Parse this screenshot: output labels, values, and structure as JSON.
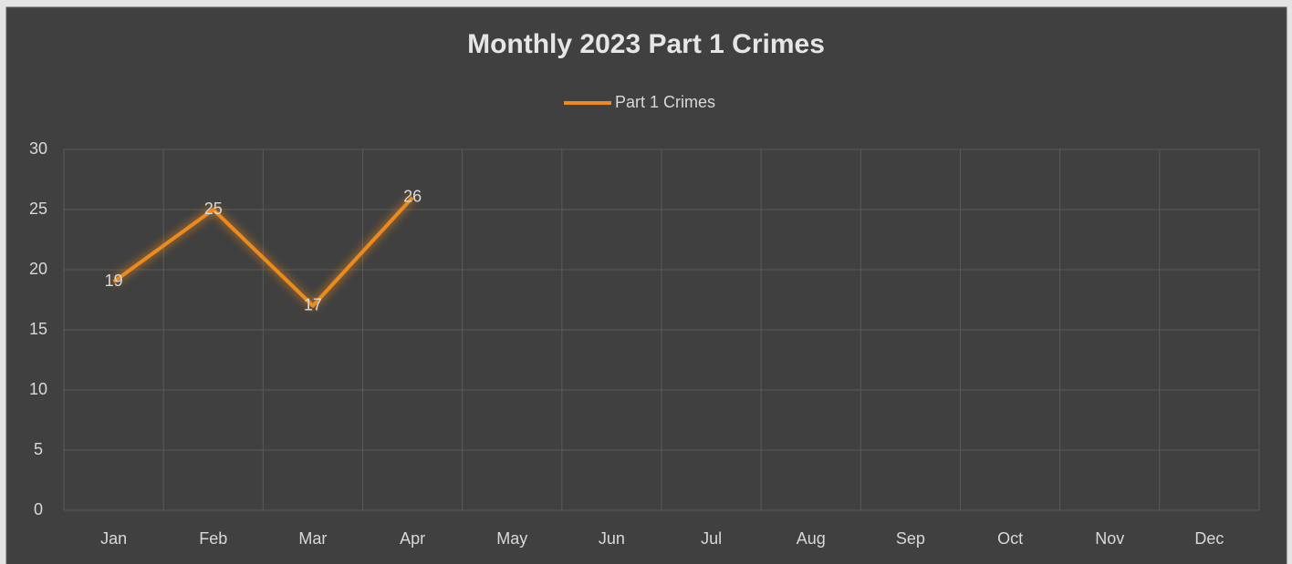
{
  "chart_data": {
    "type": "line",
    "title": "Monthly 2023 Part 1 Crimes",
    "categories": [
      "Jan",
      "Feb",
      "Mar",
      "Apr",
      "May",
      "Jun",
      "Jul",
      "Aug",
      "Sep",
      "Oct",
      "Nov",
      "Dec"
    ],
    "series": [
      {
        "name": "Part 1 Crimes",
        "color": "#ec8a1e",
        "values": [
          19,
          25,
          17,
          26,
          null,
          null,
          null,
          null,
          null,
          null,
          null,
          null
        ]
      }
    ],
    "ylim": [
      0,
      30
    ],
    "yticks": [
      0,
      5,
      10,
      15,
      20,
      25,
      30
    ],
    "grid": true,
    "legend": "top",
    "data_labels": true
  }
}
